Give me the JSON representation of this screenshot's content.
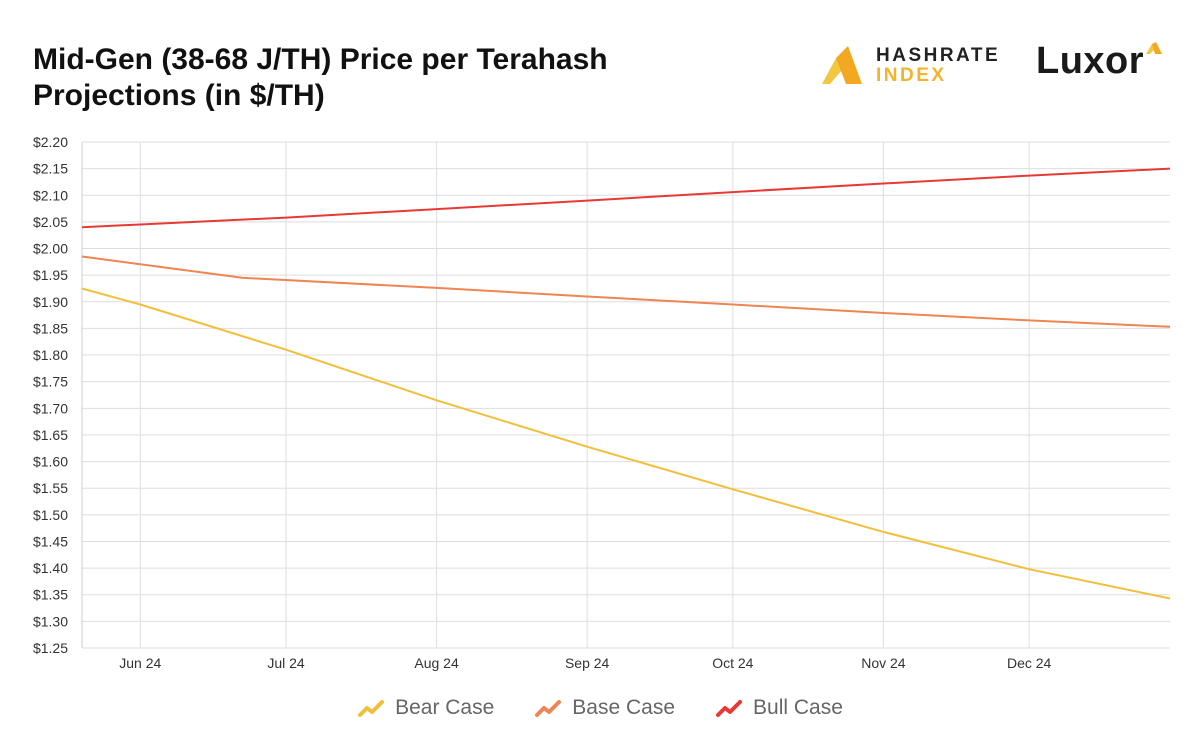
{
  "header": {
    "title_line1": "Mid-Gen (38-68 J/TH) Price per Terahash",
    "title_line2": "Projections (in $/TH)"
  },
  "brands": {
    "hashrate_line1": "HASHRATE",
    "hashrate_line2": "INDEX",
    "luxor": "Luxor"
  },
  "chart_data": {
    "type": "line",
    "ylim": [
      1.25,
      2.2
    ],
    "ystep": 0.05,
    "y_tick_labels": [
      "$1.25",
      "$1.30",
      "$1.35",
      "$1.40",
      "$1.45",
      "$1.50",
      "$1.55",
      "$1.60",
      "$1.65",
      "$1.70",
      "$1.75",
      "$1.80",
      "$1.85",
      "$1.90",
      "$1.95",
      "$2.00",
      "$2.05",
      "$2.10",
      "$2.15",
      "$2.20"
    ],
    "xlim": [
      "2024-05-20",
      "2024-12-30"
    ],
    "x_ticks": [
      {
        "date": "2024-06-01",
        "label": "Jun 24"
      },
      {
        "date": "2024-07-01",
        "label": "Jul 24"
      },
      {
        "date": "2024-08-01",
        "label": "Aug 24"
      },
      {
        "date": "2024-09-01",
        "label": "Sep 24"
      },
      {
        "date": "2024-10-01",
        "label": "Oct 24"
      },
      {
        "date": "2024-11-01",
        "label": "Nov 24"
      },
      {
        "date": "2024-12-01",
        "label": "Dec 24"
      }
    ],
    "grid": true,
    "legend_position": "bottom-center",
    "series": [
      {
        "name": "Bear Case",
        "color": "#f2bf3a",
        "points": [
          [
            "2024-05-20",
            1.925
          ],
          [
            "2024-06-01",
            1.895
          ],
          [
            "2024-07-01",
            1.81
          ],
          [
            "2024-08-01",
            1.715
          ],
          [
            "2024-09-01",
            1.628
          ],
          [
            "2024-10-01",
            1.548
          ],
          [
            "2024-11-01",
            1.468
          ],
          [
            "2024-12-01",
            1.398
          ],
          [
            "2024-12-30",
            1.343
          ]
        ]
      },
      {
        "name": "Base Case",
        "color": "#ee8552",
        "points": [
          [
            "2024-05-20",
            1.985
          ],
          [
            "2024-06-22",
            1.945
          ],
          [
            "2024-08-01",
            1.926
          ],
          [
            "2024-09-01",
            1.91
          ],
          [
            "2024-10-01",
            1.895
          ],
          [
            "2024-11-01",
            1.879
          ],
          [
            "2024-12-01",
            1.865
          ],
          [
            "2024-12-30",
            1.853
          ]
        ]
      },
      {
        "name": "Bull Case",
        "color": "#e83a34",
        "points": [
          [
            "2024-05-20",
            2.04
          ],
          [
            "2024-07-01",
            2.058
          ],
          [
            "2024-08-01",
            2.074
          ],
          [
            "2024-09-01",
            2.09
          ],
          [
            "2024-10-01",
            2.106
          ],
          [
            "2024-11-01",
            2.122
          ],
          [
            "2024-12-01",
            2.137
          ],
          [
            "2024-12-30",
            2.15
          ]
        ]
      }
    ]
  }
}
